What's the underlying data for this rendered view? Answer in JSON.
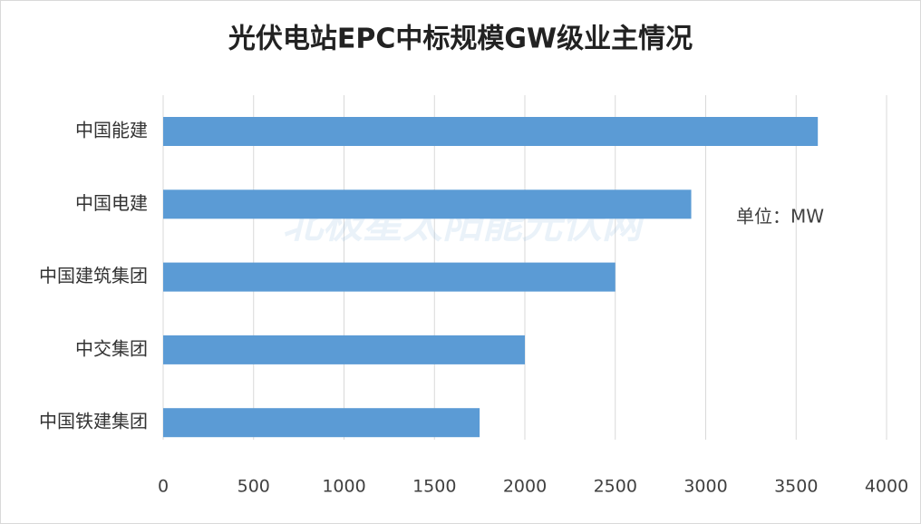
{
  "chart_data": {
    "type": "bar",
    "orientation": "horizontal",
    "title": "光伏电站EPC中标规模GW级业主情况",
    "annotation": "单位：MW",
    "watermark": "北极星太阳能光伏网",
    "categories": [
      "中国能建",
      "中国电建",
      "中国建筑集团",
      "中交集团",
      "中国铁建集团"
    ],
    "values": [
      3620,
      2920,
      2500,
      2000,
      1750
    ],
    "color": "#5b9bd5",
    "xlim": [
      0,
      4000
    ],
    "xticks": [
      0,
      500,
      1000,
      1500,
      2000,
      2500,
      3000,
      3500,
      4000
    ],
    "grid": true
  }
}
